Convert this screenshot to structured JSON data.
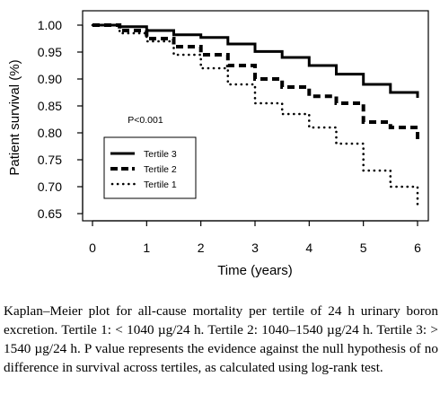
{
  "chart_data": {
    "type": "line",
    "title": "",
    "xlabel": "Time (years)",
    "ylabel": "Patient survival (%)",
    "xlim": [
      0,
      6
    ],
    "ylim": [
      0.65,
      1.0
    ],
    "xticks": [
      "0",
      "1",
      "2",
      "3",
      "4",
      "5",
      "6"
    ],
    "yticks": [
      "0.65",
      "0.70",
      "0.75",
      "0.80",
      "0.85",
      "0.90",
      "0.95",
      "1.00"
    ],
    "annotation": "P<0.001",
    "grid": false,
    "legend_position": "lower-left",
    "series": [
      {
        "name": "Tertile 3",
        "style": "solid",
        "x": [
          0,
          0.5,
          1,
          1.5,
          2,
          2.5,
          3,
          3.5,
          4,
          4.5,
          5,
          5.5,
          6
        ],
        "y": [
          1.0,
          0.997,
          0.99,
          0.982,
          0.977,
          0.965,
          0.951,
          0.94,
          0.925,
          0.909,
          0.89,
          0.875,
          0.865
        ]
      },
      {
        "name": "Tertile 2",
        "style": "dashed",
        "x": [
          0,
          0.5,
          1,
          1.5,
          2,
          2.5,
          3,
          3.5,
          4,
          4.5,
          5,
          5.5,
          6
        ],
        "y": [
          1.0,
          0.99,
          0.975,
          0.96,
          0.945,
          0.925,
          0.9,
          0.885,
          0.868,
          0.855,
          0.82,
          0.81,
          0.78
        ]
      },
      {
        "name": "Tertile 1",
        "style": "dotted",
        "x": [
          0,
          0.5,
          1,
          1.5,
          2,
          2.5,
          3,
          3.5,
          4,
          4.5,
          5,
          5.5,
          6
        ],
        "y": [
          1.0,
          0.985,
          0.97,
          0.945,
          0.92,
          0.89,
          0.855,
          0.835,
          0.81,
          0.78,
          0.73,
          0.7,
          0.665
        ]
      }
    ]
  },
  "caption": {
    "text": "Kaplan–Meier plot for all-cause mortality per tertile of 24 h urinary boron excretion. Tertile 1: < 1040 µg/24 h. Tertile 2: 1040–1540 µg/24 h. Tertile 3: > 1540 µg/24 h. P value represents the evidence against the null hypothesis of no difference in survival across tertiles, as calculated using log-rank test."
  }
}
